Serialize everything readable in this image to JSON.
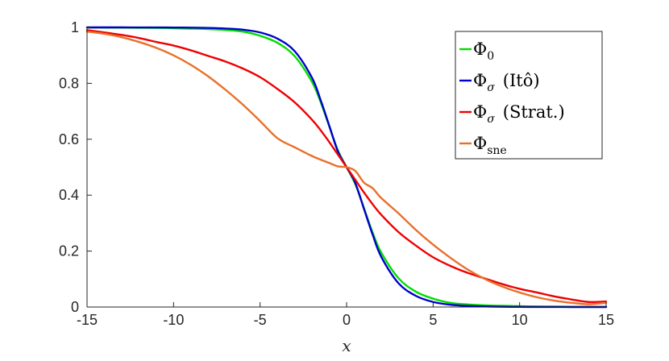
{
  "chart_data": {
    "type": "line",
    "title": "",
    "xlabel": "x",
    "ylabel": "",
    "xlim": [
      -15,
      15
    ],
    "ylim": [
      0,
      1
    ],
    "x_ticks": [
      "-15",
      "-10",
      "-5",
      "0",
      "5",
      "10",
      "15"
    ],
    "y_ticks": [
      "0",
      "0.2",
      "0.4",
      "0.6",
      "0.8",
      "1"
    ],
    "grid": false,
    "legend_position": "top-right",
    "x": [
      -15,
      -14,
      -13,
      -12,
      -11,
      -10,
      -9,
      -8,
      -7,
      -6,
      -5,
      -4,
      -3,
      -2,
      -1.5,
      -1,
      -0.5,
      0,
      0.5,
      1,
      1.5,
      2,
      3,
      4,
      5,
      6,
      7,
      8,
      9,
      10,
      11,
      12,
      13,
      14,
      15
    ],
    "series": [
      {
        "name": "Φ",
        "sub": "0",
        "sub_italic": false,
        "suffix": "",
        "color": "#00dd00",
        "values": [
          0.9995,
          0.9993,
          0.999,
          0.9986,
          0.998,
          0.997,
          0.9957,
          0.994,
          0.991,
          0.985,
          0.97,
          0.945,
          0.897,
          0.805,
          0.733,
          0.646,
          0.56,
          0.5,
          0.44,
          0.354,
          0.267,
          0.195,
          0.103,
          0.055,
          0.03,
          0.015,
          0.009,
          0.006,
          0.0043,
          0.003,
          0.002,
          0.0014,
          0.001,
          0.0007,
          0.0005
        ]
      },
      {
        "name": "Φ",
        "sub": "σ",
        "sub_italic": true,
        "suffix": "(Itô)",
        "color": "#0000cc",
        "values": [
          1.0,
          1.0,
          1.0,
          0.9999,
          0.9998,
          0.9996,
          0.999,
          0.998,
          0.996,
          0.992,
          0.982,
          0.96,
          0.915,
          0.82,
          0.74,
          0.648,
          0.556,
          0.5,
          0.444,
          0.352,
          0.26,
          0.18,
          0.085,
          0.04,
          0.018,
          0.008,
          0.004,
          0.002,
          0.001,
          0.0004,
          0.0002,
          0.0001,
          0.0,
          0.0,
          0.0
        ]
      },
      {
        "name": "Φ",
        "sub": "σ",
        "sub_italic": true,
        "suffix": "(Strat.)",
        "color": "#ee0000",
        "values": [
          0.99,
          0.982,
          0.973,
          0.962,
          0.948,
          0.935,
          0.918,
          0.898,
          0.878,
          0.853,
          0.822,
          0.78,
          0.732,
          0.67,
          0.632,
          0.59,
          0.545,
          0.5,
          0.455,
          0.41,
          0.368,
          0.33,
          0.268,
          0.22,
          0.178,
          0.147,
          0.122,
          0.102,
          0.082,
          0.065,
          0.052,
          0.038,
          0.027,
          0.018,
          0.02
        ]
      },
      {
        "name": "Φ",
        "sub": "sne",
        "sub_italic": false,
        "suffix": "",
        "color": "#e8702a",
        "values": [
          0.985,
          0.977,
          0.965,
          0.948,
          0.927,
          0.9,
          0.866,
          0.825,
          0.777,
          0.724,
          0.665,
          0.604,
          0.571,
          0.54,
          0.527,
          0.515,
          0.503,
          0.5,
          0.487,
          0.445,
          0.425,
          0.39,
          0.335,
          0.276,
          0.223,
          0.176,
          0.134,
          0.1,
          0.073,
          0.052,
          0.035,
          0.023,
          0.015,
          0.01,
          0.015
        ]
      }
    ]
  }
}
